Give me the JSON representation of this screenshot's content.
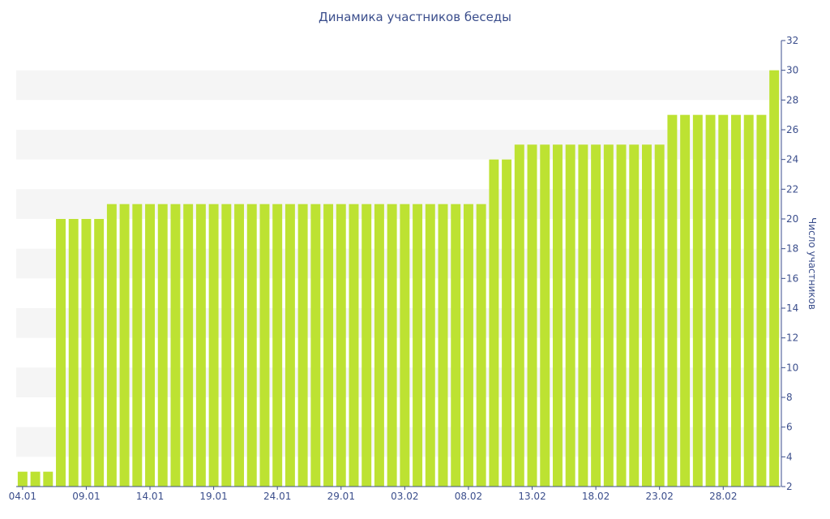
{
  "chart_data": {
    "type": "bar",
    "title": "Динамика участников беседы",
    "xlabel": "",
    "ylabel": "Число участников",
    "ylim": [
      2,
      32
    ],
    "y_ticks": [
      2,
      4,
      6,
      8,
      10,
      12,
      14,
      16,
      18,
      20,
      22,
      24,
      26,
      28,
      30,
      32
    ],
    "x_tick_labels": [
      "04.01",
      "09.01",
      "14.01",
      "19.01",
      "24.01",
      "29.01",
      "03.02",
      "08.02",
      "13.02",
      "18.02",
      "23.02",
      "28.02"
    ],
    "categories": [
      "04.01",
      "05.01",
      "06.01",
      "07.01",
      "08.01",
      "09.01",
      "10.01",
      "11.01",
      "12.01",
      "13.01",
      "14.01",
      "15.01",
      "16.01",
      "17.01",
      "18.01",
      "19.01",
      "20.01",
      "21.01",
      "22.01",
      "23.01",
      "24.01",
      "25.01",
      "26.01",
      "27.01",
      "28.01",
      "29.01",
      "30.01",
      "31.01",
      "01.02",
      "02.02",
      "03.02",
      "04.02",
      "05.02",
      "06.02",
      "07.02",
      "08.02",
      "09.02",
      "10.02",
      "11.02",
      "12.02",
      "13.02",
      "14.02",
      "15.02",
      "16.02",
      "17.02",
      "18.02",
      "19.02",
      "20.02",
      "21.02",
      "22.02",
      "23.02",
      "24.02",
      "25.02",
      "26.02",
      "27.02",
      "28.02",
      "01.03",
      "02.03",
      "03.03",
      "04.03"
    ],
    "values": [
      3,
      3,
      3,
      20,
      20,
      20,
      20,
      21,
      21,
      21,
      21,
      21,
      21,
      21,
      21,
      21,
      21,
      21,
      21,
      21,
      21,
      21,
      21,
      21,
      21,
      21,
      21,
      21,
      21,
      21,
      21,
      21,
      21,
      21,
      21,
      21,
      21,
      24,
      24,
      25,
      25,
      25,
      25,
      25,
      25,
      25,
      25,
      25,
      25,
      25,
      25,
      27,
      27,
      27,
      27,
      27,
      27,
      27,
      27,
      30
    ],
    "bar_color": "#bde232",
    "band_color": "#f5f5f5",
    "axis_color": "#3b4e8c",
    "grid": false,
    "alternating_bands": true,
    "y_axis_position": "right"
  }
}
